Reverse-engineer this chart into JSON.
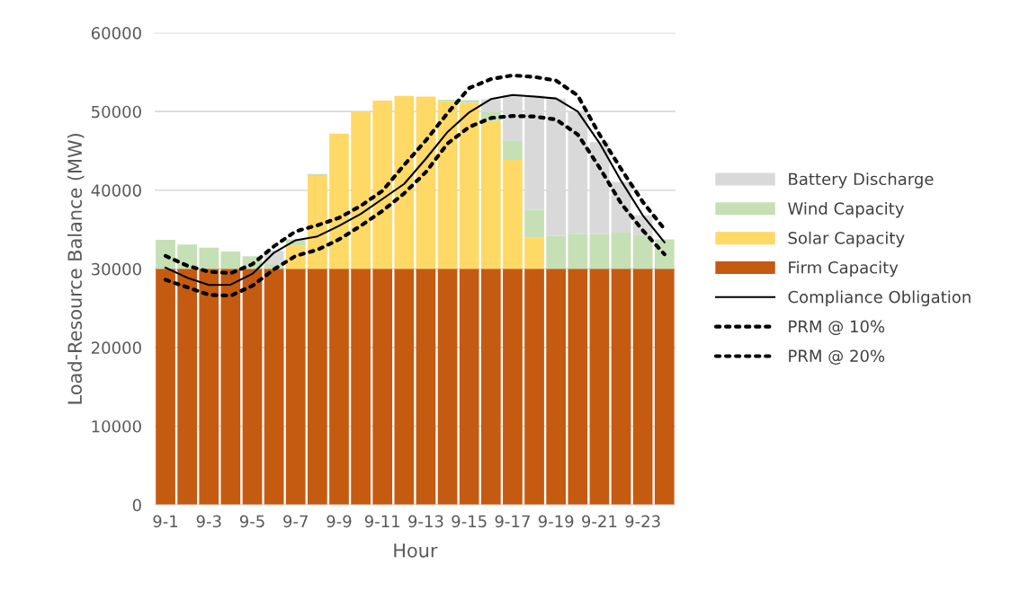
{
  "chart_data": {
    "type": "bar",
    "stacked": true,
    "xlabel": "Hour",
    "ylabel": "Load-Resource Balance (MW)",
    "categories": [
      "9-1",
      null,
      "9-3",
      null,
      "9-5",
      null,
      "9-7",
      null,
      "9-9",
      null,
      "9-11",
      null,
      "9-13",
      null,
      "9-15",
      null,
      "9-17",
      null,
      "9-19",
      null,
      "9-21",
      null,
      "9-23",
      null
    ],
    "ylim": [
      0,
      60000
    ],
    "yticks": [
      0,
      10000,
      20000,
      30000,
      40000,
      50000,
      60000
    ],
    "grid": "y",
    "legend": "right",
    "series": [
      {
        "name": "Firm Capacity",
        "color": "#c55a11",
        "values": [
          30000,
          30000,
          30000,
          30000,
          30000,
          30000,
          30000,
          30000,
          30000,
          30000,
          30000,
          30000,
          30000,
          30000,
          30000,
          30000,
          30000,
          30000,
          30000,
          30000,
          30000,
          30000,
          30000,
          30000
        ]
      },
      {
        "name": "Solar Capacity",
        "color": "#ffd966",
        "values": [
          0,
          0,
          0,
          0,
          0,
          0,
          3000,
          11800,
          17200,
          20000,
          21400,
          22000,
          21900,
          21300,
          21100,
          18800,
          13850,
          3950,
          0,
          0,
          0,
          0,
          0,
          0
        ]
      },
      {
        "name": "Wind Capacity",
        "color": "#c5e0b4",
        "values": [
          3700,
          3100,
          2700,
          2200,
          1600,
          600,
          750,
          250,
          0,
          0,
          0,
          0,
          0,
          200,
          350,
          1100,
          2400,
          3550,
          4200,
          4450,
          4450,
          4600,
          4300,
          3750
        ]
      },
      {
        "name": "Battery Discharge",
        "color": "#d9d9d9",
        "values": [
          0,
          0,
          0,
          0,
          0,
          1700,
          0,
          0,
          0,
          0,
          0,
          0,
          0,
          0,
          0,
          1650,
          5850,
          14550,
          17450,
          15550,
          11650,
          6450,
          2500,
          0
        ]
      },
      {
        "name": "Compliance Obligation",
        "type": "line",
        "line_style": "solid",
        "color": "#000000",
        "values": [
          30150,
          28880,
          27960,
          27990,
          29360,
          32060,
          33640,
          34130,
          35470,
          36990,
          38890,
          40800,
          44000,
          47400,
          49900,
          51580,
          52100,
          51900,
          51660,
          50000,
          46020,
          41180,
          36800,
          33370
        ]
      },
      {
        "name": "PRM @ 10%",
        "type": "line",
        "line_style": "dotted",
        "color": "#000000",
        "values": [
          31660,
          30400,
          29640,
          29450,
          30590,
          32880,
          34780,
          35540,
          36490,
          38010,
          39920,
          43200,
          46330,
          49800,
          52990,
          54130,
          54600,
          54400,
          53940,
          52040,
          47090,
          42700,
          38510,
          35050
        ]
      },
      {
        "name": "PRM @ 20%",
        "type": "line",
        "line_style": "dotted",
        "color": "#000000",
        "values": [
          28610,
          27660,
          26700,
          26590,
          27850,
          29940,
          31660,
          32420,
          33750,
          35470,
          37370,
          39600,
          42300,
          45940,
          48040,
          49180,
          49440,
          49370,
          48990,
          47090,
          42900,
          38320,
          34890,
          31850
        ]
      }
    ]
  }
}
